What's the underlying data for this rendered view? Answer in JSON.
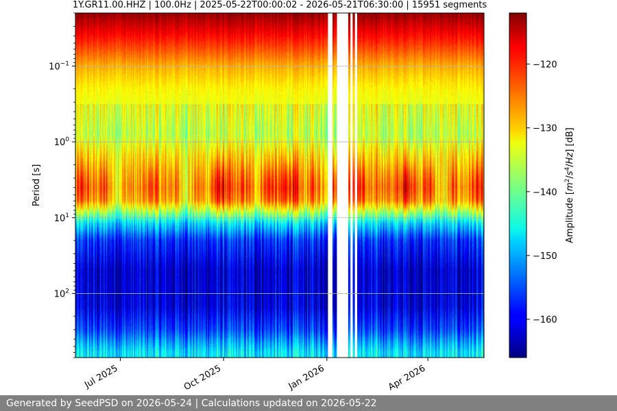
{
  "chart_data": {
    "type": "heatmap",
    "title": "1Y.GR11.00.HHZ | 100.0Hz | 2025-05-22T00:00:02 - 2026-05-21T06:30:00 | 15951 segments",
    "ylabel": "Period [s]",
    "y_scale": "log",
    "y_inverted": true,
    "ylim": [
      0.02,
      700
    ],
    "y_ticks": [
      {
        "value": 0.1,
        "base": "10",
        "exp": "−1"
      },
      {
        "value": 1,
        "base": "10",
        "exp": "0"
      },
      {
        "value": 10,
        "base": "10",
        "exp": "1"
      },
      {
        "value": 100,
        "base": "10",
        "exp": "2"
      }
    ],
    "x_range": [
      "2025-05-22",
      "2026-05-21"
    ],
    "x_ticks": [
      {
        "date": "2025-07-01",
        "label": "Jul 2025"
      },
      {
        "date": "2025-10-01",
        "label": "Oct 2025"
      },
      {
        "date": "2026-01-01",
        "label": "Jan 2026"
      },
      {
        "date": "2026-04-01",
        "label": "Apr 2026"
      }
    ],
    "data_gaps": [
      [
        "2026-01-02",
        "2026-01-06"
      ],
      [
        "2026-01-10",
        "2026-01-20"
      ],
      [
        "2026-01-22",
        "2026-01-24"
      ],
      [
        "2026-01-26",
        "2026-01-28"
      ]
    ],
    "grid": true,
    "colormap": "jet",
    "colorbar": {
      "label": "Amplitude [m²/s⁴/Hz] [dB]",
      "range": [
        -166,
        -112
      ],
      "ticks": [
        {
          "value": -120,
          "label": "−120"
        },
        {
          "value": -130,
          "label": "−130"
        },
        {
          "value": -140,
          "label": "−140"
        },
        {
          "value": -150,
          "label": "−150"
        },
        {
          "value": -160,
          "label": "−160"
        }
      ]
    },
    "period_profile_db": [
      {
        "period": 0.02,
        "db": -113
      },
      {
        "period": 0.035,
        "db": -118
      },
      {
        "period": 0.06,
        "db": -123
      },
      {
        "period": 0.1,
        "db": -128
      },
      {
        "period": 0.2,
        "db": -132
      },
      {
        "period": 0.4,
        "db": -134
      },
      {
        "period": 0.8,
        "db": -136
      },
      {
        "period": 1.5,
        "db": -131
      },
      {
        "period": 2.5,
        "db": -128
      },
      {
        "period": 4,
        "db": -126
      },
      {
        "period": 6,
        "db": -128
      },
      {
        "period": 8,
        "db": -136
      },
      {
        "period": 12,
        "db": -148
      },
      {
        "period": 20,
        "db": -157
      },
      {
        "period": 50,
        "db": -162
      },
      {
        "period": 150,
        "db": -161
      },
      {
        "period": 300,
        "db": -156
      },
      {
        "period": 600,
        "db": -147
      }
    ]
  },
  "footer": {
    "text": "Generated by SeedPSD on 2026-05-24 | Calculations updated on 2026-05-22"
  }
}
